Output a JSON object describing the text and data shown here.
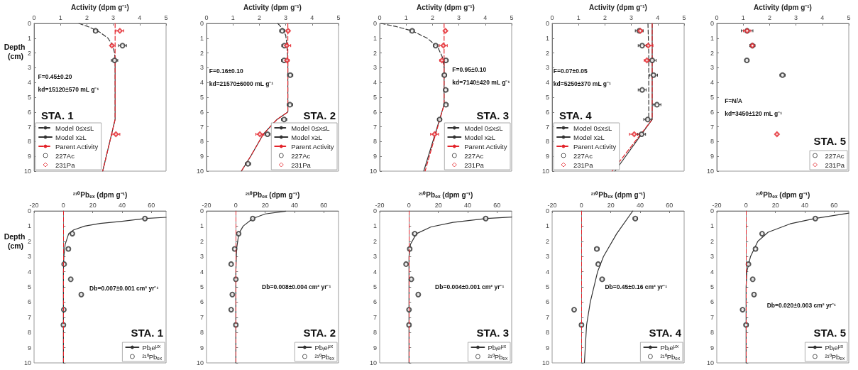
{
  "chart_data": [
    {
      "type": "scatter",
      "title": "STA. 1",
      "xlabel": "Activity (dpm g⁻¹)",
      "ylabel": "Depth (cm)",
      "xlim": [
        0,
        5
      ],
      "xticks": [
        0,
        1,
        2,
        3,
        4,
        5
      ],
      "ylim": [
        10,
        0
      ],
      "yticks": [
        0,
        1,
        2,
        3,
        4,
        5,
        6,
        7,
        8,
        9,
        10
      ],
      "legend": "bottom left",
      "annotations": [
        "F=0.45±0.20",
        "kd=15120±570 mL g⁻¹"
      ],
      "series": [
        {
          "name": "Model 0≤x≤L",
          "type": "line",
          "color": "#333333",
          "line_style": "dashed",
          "x": [
            1.7,
            2.1,
            2.5,
            2.8,
            2.98,
            3.05,
            3.07
          ],
          "values": [
            0,
            0.25,
            0.6,
            1.0,
            1.5,
            2.0,
            2.5
          ]
        },
        {
          "name": "Model x≥L",
          "type": "line",
          "color": "#333333",
          "line_style": "solid",
          "x": [
            3.07,
            3.07,
            2.6
          ],
          "values": [
            2.5,
            6.5,
            10
          ]
        },
        {
          "name": "Parent Activity",
          "type": "line",
          "color": "#e3242b",
          "line_style": "dashed",
          "x": [
            3.07,
            3.07,
            2.6
          ],
          "values": [
            0,
            6.5,
            10
          ]
        },
        {
          "name": "227Ac",
          "color": "#333333",
          "marker": "circle",
          "x": [
            2.33,
            3.35,
            3.05
          ],
          "values": [
            0.5,
            1.5,
            2.5
          ],
          "xerrors": [
            0.08,
            0.15,
            0.12
          ]
        },
        {
          "name": "231Pa",
          "color": "#e3242b",
          "marker": "diamond",
          "x": [
            3.25,
            2.95,
            3.1
          ],
          "values": [
            0.5,
            1.5,
            7.5
          ],
          "xerrors": [
            0.15,
            0.05,
            0.15
          ]
        }
      ]
    },
    {
      "type": "scatter",
      "title": "STA. 2",
      "xlabel": "Activity (dpm g⁻¹)",
      "xlim": [
        0,
        5
      ],
      "xticks": [
        0,
        1,
        2,
        3,
        4,
        5
      ],
      "ylim": [
        10,
        0
      ],
      "yticks": [
        0,
        1,
        2,
        3,
        4,
        5,
        6,
        7,
        8,
        9,
        10
      ],
      "legend": "bottom right",
      "annotations": [
        "F=0.16±0.10",
        "kd=21570±6000 mL g⁻¹"
      ],
      "series": [
        {
          "name": "Model 0≤x≤L",
          "type": "line",
          "color": "#333333",
          "line_style": "dashed",
          "x": [
            2.7,
            2.85,
            3.0,
            3.05,
            3.08
          ],
          "values": [
            0,
            0.3,
            0.8,
            1.5,
            2.5
          ]
        },
        {
          "name": "Model x≥L",
          "type": "line",
          "color": "#333333",
          "line_style": "solid",
          "x": [
            3.08,
            3.08,
            2.67,
            2.15,
            1.67,
            1.32
          ],
          "values": [
            2.5,
            6.0,
            6.5,
            7.5,
            9,
            10
          ]
        },
        {
          "name": "Parent Activity",
          "type": "line",
          "color": "#e3242b",
          "line_style": "dashed",
          "x": [
            3.08,
            3.08,
            2.67,
            2.15,
            1.67,
            1.32
          ],
          "values": [
            0,
            6.0,
            6.5,
            7.5,
            9,
            10
          ]
        },
        {
          "name": "227Ac",
          "color": "#333333",
          "marker": "circle",
          "x": [
            2.87,
            2.95,
            2.94,
            3.17,
            3.16,
            2.94,
            2.31,
            1.57
          ],
          "values": [
            0.5,
            1.5,
            2.5,
            3.5,
            5.5,
            6.5,
            7.5,
            9.5
          ],
          "xerrors": [
            0.1,
            0.1,
            0.1,
            0.1,
            0.1,
            0.1,
            0.1,
            0.1
          ]
        },
        {
          "name": "231Pa",
          "color": "#e3242b",
          "marker": "diamond",
          "x": [
            3.09,
            3.04,
            3.05,
            2.02
          ],
          "values": [
            0.5,
            1.5,
            2.5,
            7.5
          ],
          "xerrors": [
            0.05,
            0.15,
            0.08,
            0.15
          ]
        }
      ]
    },
    {
      "type": "scatter",
      "title": "STA. 3",
      "xlabel": "Activity (dpm g⁻¹)",
      "xlim": [
        0,
        5
      ],
      "xticks": [
        0,
        1,
        2,
        3,
        4,
        5
      ],
      "ylim": [
        10,
        0
      ],
      "yticks": [
        0,
        1,
        2,
        3,
        4,
        5,
        6,
        7,
        8,
        9,
        10
      ],
      "legend": "bottom right",
      "annotations": [
        "F=0.95±0.10",
        "kd=7140±420 mL g⁻¹"
      ],
      "series": [
        {
          "name": "Model 0≤x≤L",
          "type": "line",
          "color": "#333333",
          "line_style": "dashed",
          "x": [
            0.05,
            0.6,
            1.23,
            1.8,
            2.2,
            2.38,
            2.44
          ],
          "values": [
            0,
            0.2,
            0.5,
            1.0,
            1.6,
            2.3,
            3.0
          ]
        },
        {
          "name": "Model x≥L",
          "type": "line",
          "color": "#333333",
          "line_style": "solid",
          "x": [
            2.44,
            2.44,
            1.67
          ],
          "values": [
            2.5,
            5.5,
            10
          ]
        },
        {
          "name": "Parent Activity",
          "type": "line",
          "color": "#e3242b",
          "line_style": "dashed",
          "x": [
            2.44,
            2.44,
            1.72
          ],
          "values": [
            0,
            5.5,
            10
          ]
        },
        {
          "name": "227Ac",
          "color": "#333333",
          "marker": "circle",
          "x": [
            1.23,
            2.12,
            2.51,
            2.45,
            2.5,
            2.51,
            2.27
          ],
          "values": [
            0.5,
            1.5,
            2.5,
            3.5,
            4.5,
            5.5,
            6.5
          ],
          "xerrors": [
            0.08,
            0.08,
            0.08,
            0.08,
            0.08,
            0.08,
            0.08
          ]
        },
        {
          "name": "231Pa",
          "color": "#e3242b",
          "marker": "diamond",
          "x": [
            2.49,
            2.41,
            2.36,
            2.08
          ],
          "values": [
            0.5,
            1.5,
            2.5,
            7.5
          ],
          "xerrors": [
            0.05,
            0.15,
            0.08,
            0.15
          ]
        }
      ]
    },
    {
      "type": "scatter",
      "title": "STA. 4",
      "xlabel": "Activity (dpm g⁻¹)",
      "xlim": [
        0,
        5
      ],
      "xticks": [
        0,
        1,
        2,
        3,
        4,
        5
      ],
      "ylim": [
        10,
        0
      ],
      "yticks": [
        0,
        1,
        2,
        3,
        4,
        5,
        6,
        7,
        8,
        9,
        10
      ],
      "legend": "bottom left",
      "annotations": [
        "F=0.07±0.05",
        "kd=5250±370 mL g⁻¹"
      ],
      "series": [
        {
          "name": "Model 0≤x≤L",
          "type": "line",
          "color": "#333333",
          "line_style": "dashed",
          "x": [
            3.63,
            3.66,
            3.66
          ],
          "values": [
            0,
            2,
            6.4
          ]
        },
        {
          "name": "Model x≥L",
          "type": "line",
          "color": "#333333",
          "line_style": "solid",
          "x": [
            3.79,
            3.79,
            2.38
          ],
          "values": [
            0,
            6.5,
            10
          ]
        },
        {
          "name": "Parent Activity",
          "type": "line",
          "color": "#e3242b",
          "line_style": "dashed",
          "x": [
            3.79,
            3.79,
            2.27
          ],
          "values": [
            0,
            6.5,
            10
          ]
        },
        {
          "name": "227Ac",
          "color": "#333333",
          "marker": "circle",
          "x": [
            3.3,
            3.41,
            3.79,
            3.84,
            3.41,
            3.97,
            3.62,
            3.39
          ],
          "values": [
            0.5,
            1.5,
            2.5,
            3.5,
            4.5,
            5.5,
            6.5,
            7.5
          ],
          "xerrors": [
            0.15,
            0.15,
            0.15,
            0.15,
            0.15,
            0.15,
            0.15,
            0.15
          ]
        },
        {
          "name": "231Pa",
          "color": "#e3242b",
          "marker": "diamond",
          "x": [
            3.34,
            3.64,
            3.59,
            3.11
          ],
          "values": [
            0.5,
            1.5,
            2.5,
            7.5
          ],
          "xerrors": [
            0.08,
            0.18,
            0.1,
            0.18
          ]
        }
      ]
    },
    {
      "type": "scatter",
      "title": "STA. 5",
      "xlabel": "Activity (dpm g⁻¹)",
      "xlim": [
        0,
        5
      ],
      "xticks": [
        0,
        1,
        2,
        3,
        4,
        5
      ],
      "ylim": [
        10,
        0
      ],
      "yticks": [
        0,
        1,
        2,
        3,
        4,
        5,
        6,
        7,
        8,
        9,
        10
      ],
      "legend": "bottom right",
      "annotations": [
        "F=N/A",
        "kd=3450±120 mL g⁻¹"
      ],
      "series": [
        {
          "name": "227Ac",
          "color": "#333333",
          "marker": "circle",
          "x": [
            1.15,
            1.35,
            1.14,
            2.49
          ],
          "values": [
            0.5,
            1.5,
            2.5,
            3.5
          ],
          "xerrors": [
            0.22,
            0.1,
            0.08,
            0.1
          ]
        },
        {
          "name": "231Pa",
          "color": "#e3242b",
          "marker": "diamond",
          "x": [
            1.15,
            1.35,
            2.28
          ],
          "values": [
            0.5,
            1.5,
            7.5
          ],
          "xerrors": [
            0.14,
            0.06,
            0.03
          ]
        }
      ]
    },
    {
      "type": "scatter",
      "title": "STA. 1",
      "xlabel": "²¹⁰Pbₑₓ (dpm g⁻¹)",
      "ylabel": "Depth (cm)",
      "xlim": [
        -20,
        70
      ],
      "xticks": [
        -20,
        0,
        20,
        40,
        60
      ],
      "ylim": [
        10,
        0
      ],
      "yticks": [
        0,
        1,
        2,
        3,
        4,
        5,
        6,
        7,
        8,
        9,
        10
      ],
      "legend": "bottom right",
      "annotations": [
        "Db=0.007±0.001 cm² yr⁻¹"
      ],
      "ref_lines": [
        {
          "axis": "x",
          "value": 0,
          "color": "#e3242b",
          "line_style": "dashed"
        }
      ],
      "series": [
        {
          "name": "Pbᵢe$^{μx}$",
          "type": "line",
          "color": "#333333",
          "line_style": "solid",
          "x": [
            70,
            56,
            40,
            25,
            14.5,
            7,
            3.6,
            1.2,
            0.3,
            0,
            0
          ],
          "values": [
            0.42,
            0.5,
            0.68,
            0.82,
            1.0,
            1.25,
            1.5,
            2.2,
            3,
            4,
            10
          ]
        },
        {
          "name": "²¹⁰Pbₑₓ",
          "color": "#333333",
          "marker": "circle",
          "x": [
            55.6,
            6.1,
            3.4,
            0.5,
            5,
            12.2,
            0.3,
            0
          ],
          "values": [
            0.5,
            1.5,
            2.5,
            3.5,
            4.5,
            5.5,
            6.5,
            7.5
          ],
          "xerrors": [
            1,
            1,
            1,
            1,
            1,
            1,
            1,
            1
          ]
        }
      ]
    },
    {
      "type": "scatter",
      "title": "STA. 2",
      "xlabel": "²¹⁰Pbₑₓ (dpm g⁻¹)",
      "xlim": [
        -20,
        70
      ],
      "xticks": [
        -20,
        0,
        20,
        40,
        60
      ],
      "ylim": [
        10,
        0
      ],
      "yticks": [
        0,
        1,
        2,
        3,
        4,
        5,
        6,
        7,
        8,
        9,
        10
      ],
      "legend": "bottom right",
      "annotations": [
        "Db=0.008±0.004 cm² yr⁻¹"
      ],
      "ref_lines": [
        {
          "axis": "x",
          "value": 0,
          "color": "#e3242b",
          "line_style": "dashed"
        }
      ],
      "series": [
        {
          "name": "Pbᵢe$^{μx}$",
          "type": "line",
          "color": "#333333",
          "line_style": "solid",
          "x": [
            34,
            20,
            11.5,
            5,
            2,
            0.5,
            0,
            0
          ],
          "values": [
            0.02,
            0.2,
            0.5,
            1,
            1.5,
            2.5,
            4,
            10
          ]
        },
        {
          "name": "²¹⁰Pbₑₓ",
          "color": "#333333",
          "marker": "circle",
          "x": [
            11.5,
            1.9,
            -0.8,
            -3.2,
            0,
            -2.4,
            -3.2,
            0
          ],
          "values": [
            0.5,
            1.5,
            2.5,
            3.5,
            4.5,
            5.5,
            6.5,
            7.5
          ],
          "xerrors": [
            1,
            1,
            1,
            1,
            1,
            1,
            1,
            1
          ]
        }
      ]
    },
    {
      "type": "scatter",
      "title": "STA. 3",
      "xlabel": "²¹⁰Pbₑₓ (dpm g⁻¹)",
      "xlim": [
        -20,
        70
      ],
      "xticks": [
        -20,
        0,
        20,
        40,
        60
      ],
      "ylim": [
        10,
        0
      ],
      "yticks": [
        0,
        1,
        2,
        3,
        4,
        5,
        6,
        7,
        8,
        9,
        10
      ],
      "legend": "bottom right",
      "annotations": [
        "Db=0.004±0.001 cm² yr⁻¹"
      ],
      "ref_lines": [
        {
          "axis": "x",
          "value": 0,
          "color": "#e3242b",
          "line_style": "dashed"
        }
      ],
      "series": [
        {
          "name": "Pbᵢe$^{μx}$",
          "type": "line",
          "color": "#333333",
          "line_style": "solid",
          "x": [
            70,
            53,
            30,
            15,
            5,
            1,
            0,
            0
          ],
          "values": [
            0.4,
            0.5,
            0.75,
            1.05,
            1.5,
            2.2,
            3,
            10
          ]
        },
        {
          "name": "²¹⁰Pbₑₓ",
          "color": "#333333",
          "marker": "circle",
          "x": [
            52.3,
            3.9,
            0.5,
            -2,
            1.6,
            6.3,
            0,
            0
          ],
          "values": [
            0.5,
            1.5,
            2.5,
            3.5,
            4.5,
            5.5,
            6.5,
            7.5
          ],
          "xerrors": [
            1.5,
            1.5,
            1,
            1,
            1,
            1,
            1,
            1
          ]
        }
      ]
    },
    {
      "type": "scatter",
      "title": "STA. 4",
      "xlabel": "²¹⁰Pbₑₓ (dpm g⁻¹)",
      "xlim": [
        -20,
        70
      ],
      "xticks": [
        -20,
        0,
        20,
        40,
        60
      ],
      "ylim": [
        10,
        0
      ],
      "yticks": [
        0,
        1,
        2,
        3,
        4,
        5,
        6,
        7,
        8,
        9,
        10
      ],
      "legend": "bottom right",
      "annotations": [
        "Db=0.45±0.16 cm² yr⁻¹"
      ],
      "ref_lines": [
        {
          "axis": "x",
          "value": 0,
          "color": "#e3242b",
          "line_style": "dashed"
        }
      ],
      "series": [
        {
          "name": "Pbᵢe$^{μx}$",
          "type": "line",
          "color": "#333333",
          "line_style": "solid",
          "x": [
            35,
            24,
            15,
            11,
            6,
            3.5,
            2
          ],
          "values": [
            0,
            1.5,
            3,
            4,
            6,
            7.5,
            10
          ]
        },
        {
          "name": "²¹⁰Pbₑₓ",
          "color": "#333333",
          "marker": "circle",
          "x": [
            36.7,
            10.5,
            11.4,
            14.1,
            -5,
            0
          ],
          "values": [
            0.5,
            2.5,
            3.5,
            4.5,
            6.5,
            7.5
          ],
          "xerrors": [
            1.5,
            1.5,
            1,
            1.5,
            1,
            1
          ]
        }
      ]
    },
    {
      "type": "scatter",
      "title": "STA. 5",
      "xlabel": "²¹⁰Pbₑₓ (dpm g⁻¹)",
      "xlim": [
        -20,
        70
      ],
      "xticks": [
        -20,
        0,
        20,
        40,
        60
      ],
      "ylim": [
        10,
        0
      ],
      "yticks": [
        0,
        1,
        2,
        3,
        4,
        5,
        6,
        7,
        8,
        9,
        10
      ],
      "legend": "bottom right",
      "annotations": [
        "Db=0.020±0.003 cm² yr⁻¹"
      ],
      "ref_lines": [
        {
          "axis": "x",
          "value": 0,
          "color": "#e3242b",
          "line_style": "dashed"
        }
      ],
      "series": [
        {
          "name": "Pbᵢe$^{μx}$",
          "type": "line",
          "color": "#333333",
          "line_style": "solid",
          "x": [
            70,
            47,
            30,
            15,
            8,
            3,
            0.5,
            0,
            0
          ],
          "values": [
            0.15,
            0.5,
            0.85,
            1.4,
            2,
            3,
            4,
            5,
            10
          ]
        },
        {
          "name": "²¹⁰Pbₑₓ",
          "color": "#333333",
          "marker": "circle",
          "x": [
            47.2,
            10.9,
            6.4,
            1.6,
            4.5,
            5.4,
            -2.4,
            0
          ],
          "values": [
            0.5,
            1.5,
            2.5,
            3.5,
            4.5,
            5.5,
            6.5,
            7.5
          ],
          "xerrors": [
            1,
            1,
            1,
            1,
            1,
            1,
            1,
            1.5
          ]
        }
      ]
    }
  ]
}
